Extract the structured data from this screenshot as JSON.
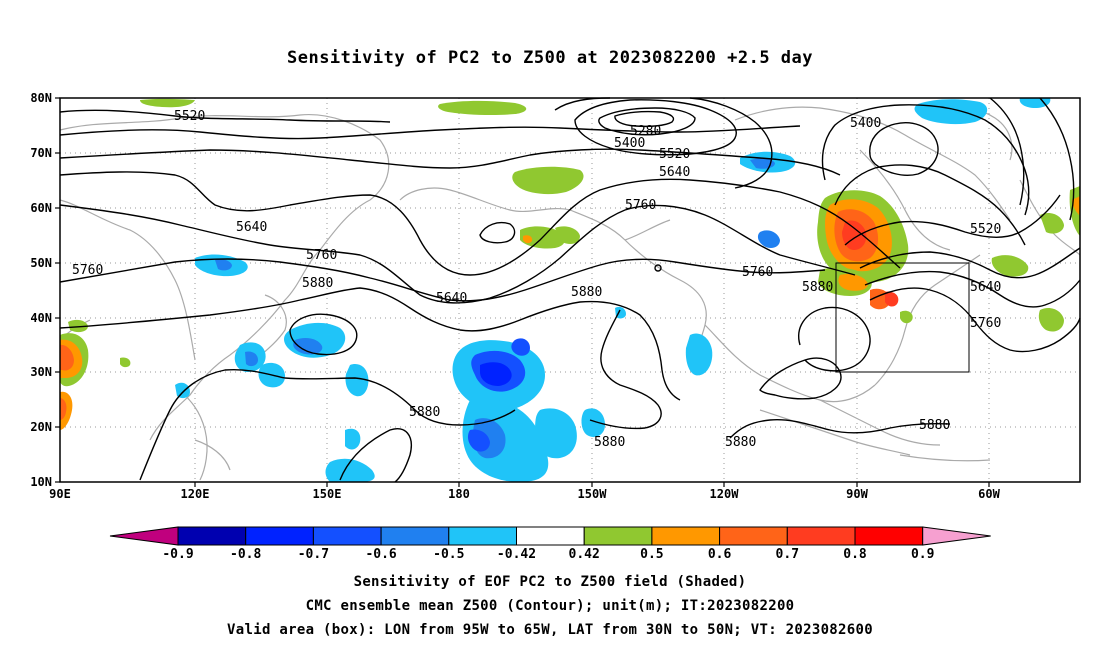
{
  "title": "Sensitivity of PC2 to Z500 at 2023082200 +2.5 day",
  "axes": {
    "lat_labels": [
      "80N",
      "70N",
      "60N",
      "50N",
      "40N",
      "30N",
      "20N",
      "10N"
    ],
    "lon_labels": [
      "90E",
      "120E",
      "150E",
      "180",
      "150W",
      "120W",
      "90W",
      "60W"
    ]
  },
  "contour_labels": [
    "5520",
    "5280",
    "5400",
    "5520",
    "5640",
    "5400",
    "5640",
    "5760",
    "5760",
    "5880",
    "5640",
    "5880",
    "5760",
    "5880",
    "5880",
    "5880",
    "5880",
    "5880",
    "5520",
    "5640",
    "5760",
    "5760"
  ],
  "colorbar": {
    "levels": [
      "-0.9",
      "-0.8",
      "-0.7",
      "-0.6",
      "-0.5",
      "-0.42",
      "0.42",
      "0.5",
      "0.6",
      "0.7",
      "0.8",
      "0.9"
    ],
    "colors": [
      "#c0007e",
      "#0000b0",
      "#0022ff",
      "#1450ff",
      "#2080f0",
      "#20c4f8",
      "#ffffff",
      "#90c830",
      "#ff9800",
      "#ff6418",
      "#ff3c20",
      "#ff0000",
      "#f6a0d0"
    ]
  },
  "captions": {
    "line1": "Sensitivity of EOF PC2 to Z500 field (Shaded)",
    "line2": "CMC ensemble mean Z500 (Contour); unit(m); IT:2023082200",
    "line3": "Valid area (box): LON from 95W to 65W, LAT from 30N to 50N; VT: 2023082600"
  },
  "valid_area": {
    "lon_min": "95W",
    "lon_max": "65W",
    "lat_min": "30N",
    "lat_max": "50N"
  }
}
